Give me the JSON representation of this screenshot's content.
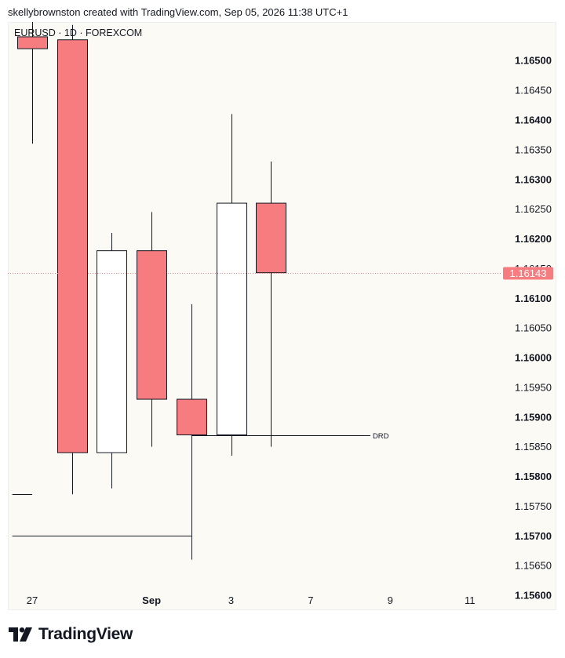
{
  "header": {
    "text": "skellybrownston created with TradingView.com, Sep 05, 2026 11:38 UTC+1"
  },
  "symbol": {
    "text": "EURUSD · 1D · FOREXCOM"
  },
  "footer": {
    "brand": "TradingView"
  },
  "colors": {
    "bull_fill": "#ffffff",
    "bear_fill": "#f77c80",
    "outline": "#131722",
    "last_price_bg": "#f77c80",
    "background": "#fbfaf5"
  },
  "chart_data": {
    "type": "candlestick",
    "symbol": "EURUSD",
    "timeframe": "1D",
    "exchange": "FOREXCOM",
    "ylim": [
      1.15575,
      1.16565
    ],
    "y_ticks": [
      {
        "value": 1.165,
        "label": "1.16500",
        "bold": true
      },
      {
        "value": 1.1645,
        "label": "1.16450",
        "bold": false
      },
      {
        "value": 1.164,
        "label": "1.16400",
        "bold": true
      },
      {
        "value": 1.1635,
        "label": "1.16350",
        "bold": false
      },
      {
        "value": 1.163,
        "label": "1.16300",
        "bold": true
      },
      {
        "value": 1.1625,
        "label": "1.16250",
        "bold": false
      },
      {
        "value": 1.162,
        "label": "1.16200",
        "bold": true
      },
      {
        "value": 1.1615,
        "label": "1.16150",
        "bold": false
      },
      {
        "value": 1.161,
        "label": "1.16100",
        "bold": true
      },
      {
        "value": 1.1605,
        "label": "1.16050",
        "bold": false
      },
      {
        "value": 1.16,
        "label": "1.16000",
        "bold": true
      },
      {
        "value": 1.1595,
        "label": "1.15950",
        "bold": false
      },
      {
        "value": 1.159,
        "label": "1.15900",
        "bold": true
      },
      {
        "value": 1.1585,
        "label": "1.15850",
        "bold": false
      },
      {
        "value": 1.158,
        "label": "1.15800",
        "bold": true
      },
      {
        "value": 1.1575,
        "label": "1.15750",
        "bold": false
      },
      {
        "value": 1.157,
        "label": "1.15700",
        "bold": true
      },
      {
        "value": 1.1565,
        "label": "1.15650",
        "bold": false
      },
      {
        "value": 1.156,
        "label": "1.15600",
        "bold": true
      }
    ],
    "x_ticks": [
      {
        "index": 0,
        "label": "27",
        "bold": false
      },
      {
        "index": 3,
        "label": "Sep",
        "bold": true
      },
      {
        "index": 5,
        "label": "3",
        "bold": false
      },
      {
        "index": 7,
        "label": "7",
        "bold": false
      },
      {
        "index": 9,
        "label": "9",
        "bold": false
      },
      {
        "index": 11,
        "label": "11",
        "bold": false
      }
    ],
    "candles": [
      {
        "index": 0,
        "open": 1.1654,
        "high": 1.1658,
        "low": 1.1636,
        "close": 1.1652
      },
      {
        "index": 1,
        "open": 1.16535,
        "high": 1.1656,
        "low": 1.1577,
        "close": 1.1584
      },
      {
        "index": 2,
        "open": 1.1584,
        "high": 1.1621,
        "low": 1.1578,
        "close": 1.1618
      },
      {
        "index": 3,
        "open": 1.1618,
        "high": 1.16245,
        "low": 1.1585,
        "close": 1.1593
      },
      {
        "index": 4,
        "open": 1.1593,
        "high": 1.1609,
        "low": 1.1566,
        "close": 1.1587
      },
      {
        "index": 5,
        "open": 1.1587,
        "high": 1.1641,
        "low": 1.15835,
        "close": 1.1626
      },
      {
        "index": 6,
        "open": 1.1626,
        "high": 1.1633,
        "low": 1.1585,
        "close": 1.16143
      }
    ],
    "levels": [
      {
        "price": 1.1577,
        "x_start": -0.5,
        "x_end": 0,
        "label": ""
      },
      {
        "price": 1.157,
        "x_start": -0.5,
        "x_end": 4,
        "label": ""
      },
      {
        "price": 1.1587,
        "x_start": 4,
        "x_end": 8.5,
        "label": "DRD"
      }
    ],
    "last_price": {
      "value": 1.16143,
      "label": "1.16143"
    }
  }
}
